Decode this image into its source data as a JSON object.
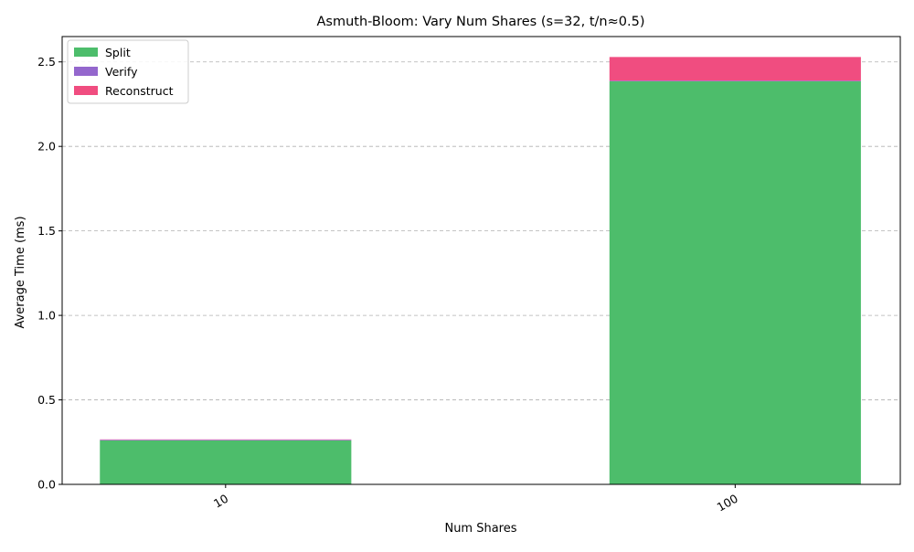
{
  "chart_data": {
    "type": "bar",
    "stacked": true,
    "title": "Asmuth-Bloom: Vary Num Shares (s=32, t/n≈0.5)",
    "xlabel": "Num Shares",
    "ylabel": "Average Time (ms)",
    "categories": [
      "10",
      "100"
    ],
    "series": [
      {
        "name": "Split",
        "values": [
          0.26,
          2.385
        ],
        "color": "#4dbd6b"
      },
      {
        "name": "Verify",
        "values": [
          0.004,
          0.004
        ],
        "color": "#9467cd"
      },
      {
        "name": "Reconstruct",
        "values": [
          0.002,
          0.14
        ],
        "color": "#f04d80"
      }
    ],
    "ylim": [
      0,
      2.65
    ],
    "yticks": [
      0.0,
      0.5,
      1.0,
      1.5,
      2.0,
      2.5
    ],
    "ytick_labels": [
      "0.0",
      "0.5",
      "1.0",
      "1.5",
      "2.0",
      "2.5"
    ],
    "grid": "y-dashed",
    "legend_position": "top-left"
  }
}
